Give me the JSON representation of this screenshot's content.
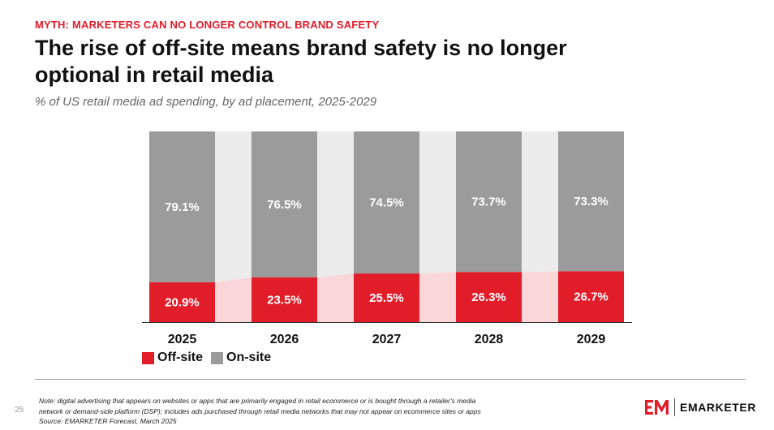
{
  "header": {
    "kicker": "MYTH: MARKETERS CAN NO LONGER CONTROL BRAND SAFETY",
    "headline_line1": "The rise of off-site means brand safety is no longer",
    "headline_line2": "optional in retail media",
    "subtitle": "% of US retail media ad spending, by ad placement, 2025-2029"
  },
  "chart_data": {
    "type": "bar",
    "stacked": true,
    "percent": true,
    "categories": [
      "2025",
      "2026",
      "2027",
      "2028",
      "2029"
    ],
    "series": [
      {
        "name": "Off-site",
        "values": [
          20.9,
          23.5,
          25.5,
          26.3,
          26.7
        ],
        "labels": [
          "20.9%",
          "23.5%",
          "25.5%",
          "26.3%",
          "26.7%"
        ],
        "color": "#e11d2a"
      },
      {
        "name": "On-site",
        "values": [
          79.1,
          76.5,
          74.5,
          73.7,
          73.3
        ],
        "labels": [
          "79.1%",
          "76.5%",
          "74.5%",
          "73.7%",
          "73.3%"
        ],
        "color": "#9b9b9b"
      }
    ],
    "ylim": [
      0,
      100
    ],
    "grid": false,
    "legend_position": "bottom-left",
    "connector_colors": {
      "upper": "#ececec",
      "lower": "#fbd6d9"
    }
  },
  "legend": {
    "offsite_label": "Off-site",
    "onsite_label": "On-site"
  },
  "footer": {
    "page_number": "25",
    "note_line1": "Note: digital advertising that appears on websites or apps that are primarily engaged in retail ecommerce or is bought through a retailer's media",
    "note_line2": "network or demand-side platform (DSP); includes ads purchased through retail media networks that may not appear on ecommerce sites or apps",
    "source": "Source: EMARKETER Forecast, March 2025",
    "brand_name": "EMARKETER"
  },
  "colors": {
    "accent": "#e11d2a",
    "onsite": "#9b9b9b",
    "text": "#111111"
  }
}
